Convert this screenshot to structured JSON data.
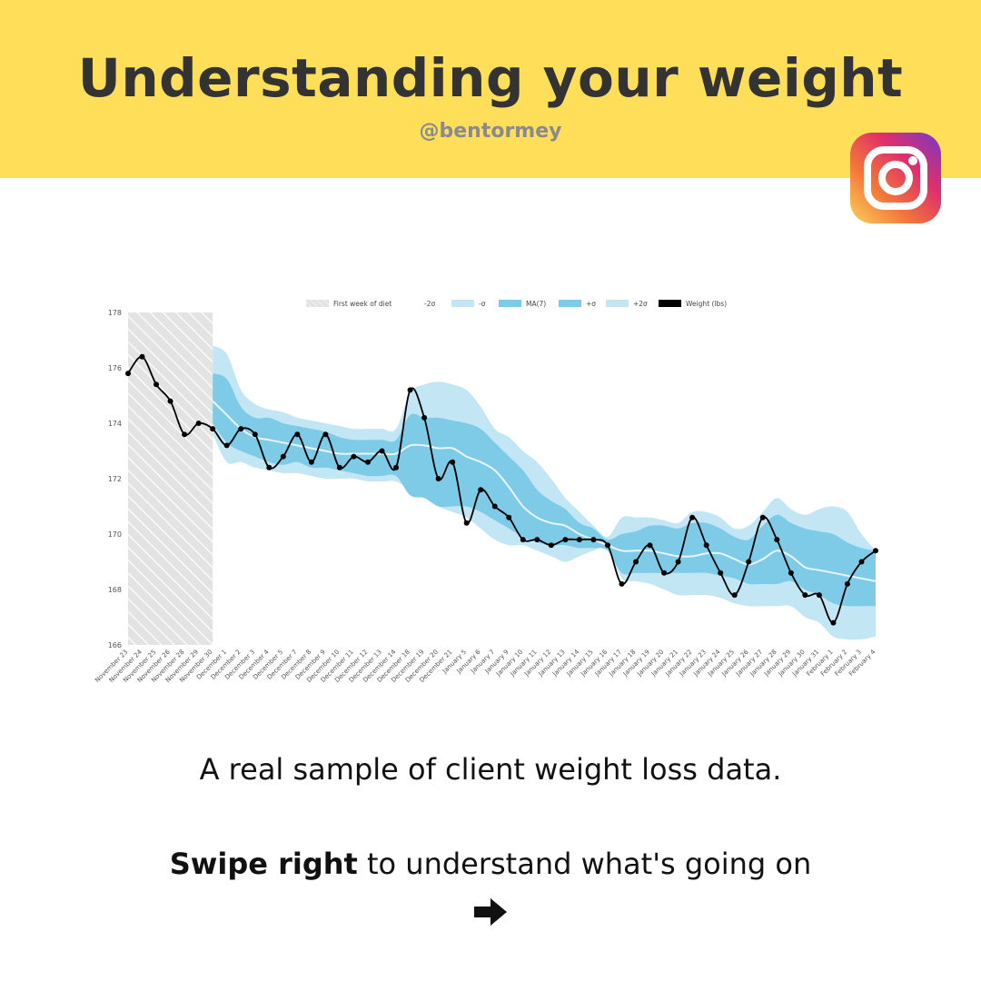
{
  "header": {
    "title": "Understanding your weight",
    "handle": "@bentormey",
    "background": "#ffde59"
  },
  "icons": {
    "brand": "instagram-icon",
    "next": "right-arrow-icon"
  },
  "caption": "A real sample of client weight loss data.",
  "swipe": {
    "bold": "Swipe right",
    "rest": " to understand what's going on"
  },
  "chart_data": {
    "type": "line",
    "title": "",
    "xlabel": "",
    "ylabel": "",
    "ylim": [
      166,
      178
    ],
    "y_ticks": [
      166,
      168,
      170,
      172,
      174,
      176,
      178
    ],
    "grid": false,
    "legend_position": "top",
    "legend": [
      "First week of diet",
      "-2σ",
      "-σ",
      "MA(7)",
      "+σ",
      "+2σ",
      "Weight (lbs)"
    ],
    "colors": {
      "weight": "#000000",
      "ma": "#e8f4fa",
      "sigma1": "#7ecbe8",
      "sigma2": "#c3e6f5",
      "shade": "#e3e3e3"
    },
    "shaded_region": {
      "label": "First week of diet",
      "from": "November 23",
      "to": "November 30"
    },
    "categories": [
      "November 23",
      "November 24",
      "November 25",
      "November 26",
      "November 28",
      "November 29",
      "November 30",
      "December 1",
      "December 2",
      "December 3",
      "December 4",
      "December 5",
      "December 7",
      "December 8",
      "December 9",
      "December 10",
      "December 11",
      "December 12",
      "December 13",
      "December 14",
      "December 18",
      "December 19",
      "December 20",
      "December 21",
      "January 5",
      "January 6",
      "January 7",
      "January 9",
      "January 10",
      "January 11",
      "January 12",
      "January 13",
      "January 14",
      "January 15",
      "January 16",
      "January 17",
      "January 18",
      "January 19",
      "January 20",
      "January 21",
      "January 22",
      "January 23",
      "January 24",
      "January 25",
      "January 26",
      "January 27",
      "January 28",
      "January 29",
      "January 30",
      "January 31",
      "February 1",
      "February 2",
      "February 3",
      "February 4"
    ],
    "series": [
      {
        "name": "Weight (lbs)",
        "values": [
          175.8,
          176.4,
          175.4,
          174.8,
          173.6,
          174.0,
          173.8,
          173.2,
          173.8,
          173.6,
          172.4,
          172.8,
          173.6,
          172.6,
          173.6,
          172.4,
          172.8,
          172.6,
          173.0,
          172.4,
          175.2,
          174.2,
          172.0,
          172.6,
          170.4,
          171.6,
          171.0,
          170.6,
          169.8,
          169.8,
          169.6,
          169.8,
          169.8,
          169.8,
          169.6,
          168.2,
          169.0,
          169.6,
          168.6,
          169.0,
          170.6,
          169.6,
          168.6,
          167.8,
          169.0,
          170.6,
          169.8,
          168.6,
          167.8,
          167.8,
          166.8,
          168.2,
          169.0,
          169.4
        ]
      },
      {
        "name": "MA(7)",
        "values": [
          null,
          null,
          null,
          null,
          null,
          null,
          174.8,
          174.3,
          173.8,
          173.5,
          173.4,
          173.3,
          173.2,
          173.1,
          173.0,
          172.9,
          172.9,
          172.9,
          172.9,
          172.9,
          173.2,
          173.2,
          173.1,
          173.1,
          172.8,
          172.6,
          172.3,
          171.7,
          171.0,
          170.6,
          170.4,
          170.3,
          170.0,
          169.8,
          169.6,
          169.4,
          169.4,
          169.4,
          169.3,
          169.2,
          169.2,
          169.3,
          169.3,
          169.1,
          168.9,
          169.1,
          169.4,
          169.2,
          168.8,
          168.7,
          168.6,
          168.5,
          168.4,
          168.3
        ]
      },
      {
        "name": "-σ",
        "values": [
          null,
          null,
          null,
          null,
          null,
          null,
          174.0,
          173.3,
          173.0,
          172.8,
          172.6,
          172.5,
          172.6,
          172.4,
          172.4,
          172.3,
          172.2,
          172.1,
          172.1,
          172.1,
          171.4,
          171.3,
          171.0,
          171.0,
          171.0,
          170.8,
          170.5,
          170.2,
          169.9,
          169.7,
          169.6,
          169.6,
          169.5,
          169.5,
          169.4,
          168.6,
          168.6,
          168.6,
          168.6,
          168.6,
          168.6,
          168.6,
          168.5,
          168.4,
          168.2,
          168.2,
          168.2,
          168.3,
          168.0,
          167.8,
          167.5,
          167.4,
          167.4,
          167.4
        ]
      },
      {
        "name": "+σ",
        "values": [
          null,
          null,
          null,
          null,
          null,
          null,
          175.8,
          175.6,
          174.6,
          174.2,
          174.2,
          174.0,
          173.9,
          173.8,
          173.7,
          173.5,
          173.4,
          173.4,
          173.4,
          173.4,
          174.3,
          174.2,
          174.2,
          174.1,
          174.0,
          173.8,
          173.3,
          172.8,
          172.3,
          171.6,
          171.2,
          170.9,
          170.4,
          170.2,
          169.8,
          170.0,
          170.1,
          170.3,
          170.3,
          170.2,
          170.4,
          170.4,
          170.2,
          169.9,
          169.8,
          170.3,
          170.7,
          170.4,
          170.2,
          170.1,
          170.0,
          169.7,
          169.5,
          169.4
        ]
      },
      {
        "name": "-2σ",
        "values": [
          null,
          null,
          null,
          null,
          null,
          null,
          173.6,
          172.6,
          172.6,
          172.4,
          172.3,
          172.2,
          172.2,
          172.1,
          172.0,
          172.0,
          172.0,
          171.9,
          171.9,
          171.9,
          171.6,
          171.4,
          171.0,
          170.8,
          170.6,
          170.2,
          169.8,
          169.6,
          169.6,
          169.4,
          169.2,
          169.0,
          169.2,
          169.4,
          169.5,
          168.4,
          168.3,
          168.2,
          168.0,
          167.8,
          167.8,
          167.8,
          167.7,
          167.5,
          167.4,
          167.4,
          167.4,
          167.4,
          167.0,
          166.8,
          166.3,
          166.2,
          166.2,
          166.3
        ]
      },
      {
        "name": "+2σ",
        "values": [
          null,
          null,
          null,
          null,
          null,
          null,
          176.8,
          176.5,
          175.2,
          174.7,
          174.5,
          174.4,
          174.2,
          174.1,
          174.0,
          173.9,
          173.8,
          173.8,
          173.8,
          173.8,
          175.1,
          175.4,
          175.5,
          175.4,
          175.2,
          174.6,
          173.8,
          173.5,
          173.0,
          172.6,
          172.0,
          171.3,
          170.8,
          170.3,
          169.9,
          170.6,
          170.6,
          170.6,
          170.5,
          170.4,
          170.8,
          170.8,
          170.6,
          170.2,
          170.3,
          170.8,
          171.3,
          170.9,
          170.7,
          170.9,
          171.0,
          170.8,
          170.0,
          169.4
        ]
      }
    ]
  }
}
